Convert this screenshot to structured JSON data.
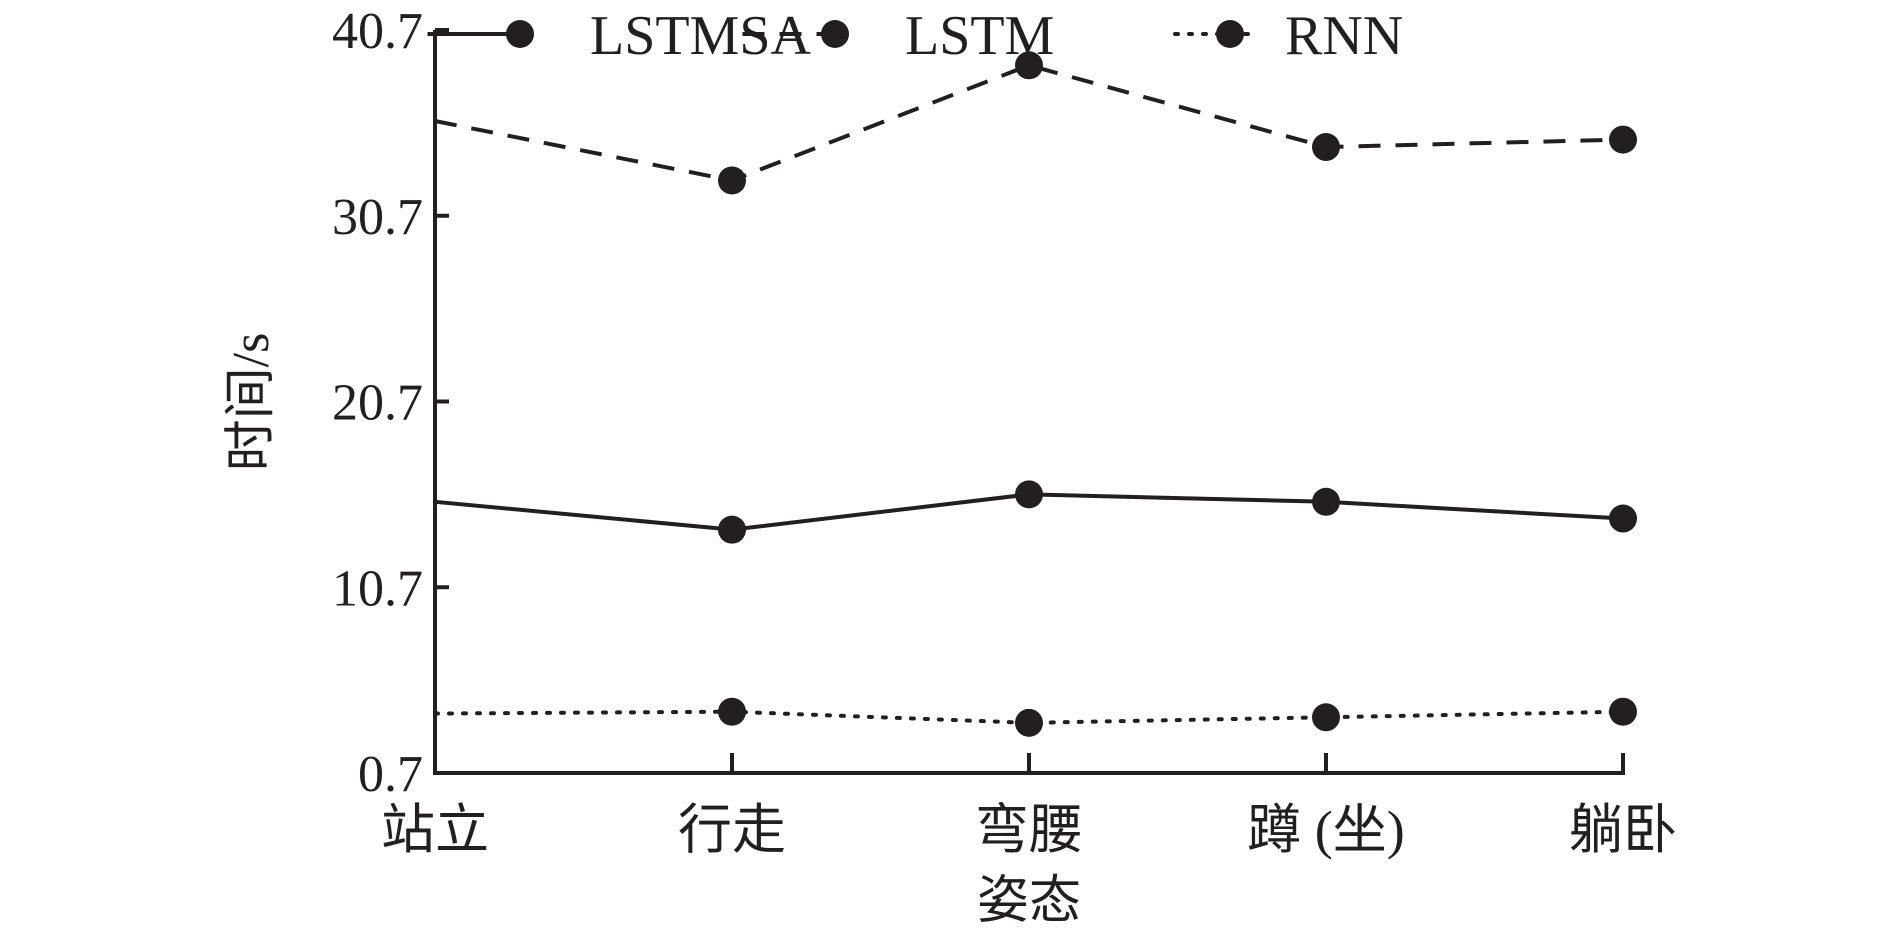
{
  "chart_data": {
    "type": "line",
    "categories": [
      "站立",
      "行走",
      "弯腰",
      "蹲 (坐)",
      "躺卧"
    ],
    "series": [
      {
        "name": "LSTMSA",
        "values": [
          15.3,
          13.8,
          15.7,
          15.3,
          14.4
        ],
        "style": "solid"
      },
      {
        "name": "LSTM",
        "values": [
          35.8,
          32.6,
          38.8,
          34.4,
          34.8
        ],
        "style": "dashed"
      },
      {
        "name": "RNN",
        "values": [
          3.9,
          4.0,
          3.4,
          3.7,
          4.0
        ],
        "style": "dotted"
      }
    ],
    "xlabel": "姿态",
    "ylabel": "时间/s",
    "yticks": [
      "0.7",
      "10.7",
      "20.7",
      "30.7",
      "40.7"
    ],
    "ylim": [
      0.7,
      40.7
    ],
    "grid": false,
    "legend_position": "top",
    "color": "#231f20",
    "marker": "filled-circle"
  }
}
